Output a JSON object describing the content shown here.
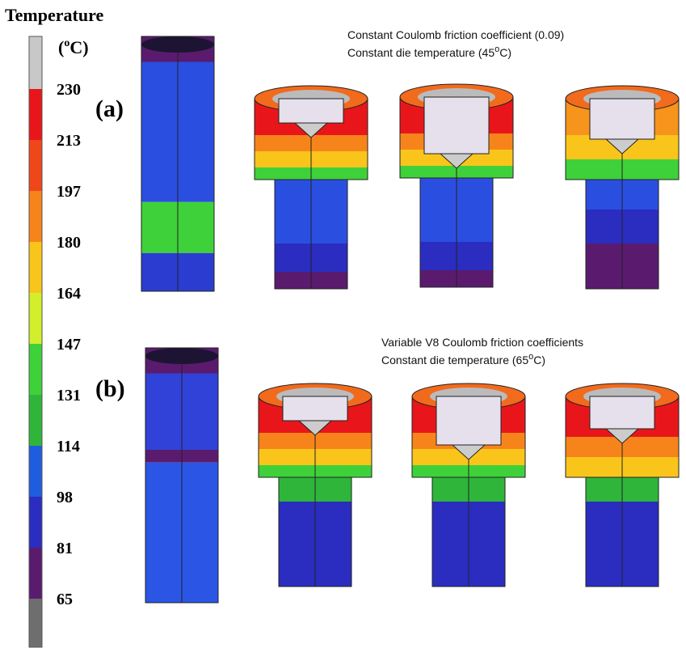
{
  "legend": {
    "title": "Temperature",
    "unit": [
      "(",
      "o",
      "C)"
    ],
    "labels": [
      "230",
      "213",
      "197",
      "180",
      "164",
      "147",
      "131",
      "114",
      "98",
      "81",
      "65"
    ]
  },
  "panels": [
    {
      "label": "(a)",
      "caption": [
        "Constant Coulomb friction coefficient (0.09)",
        [
          "Constant die temperature (45",
          "o",
          "C)"
        ]
      ]
    },
    {
      "label": "(b)",
      "caption": [
        "Variable V8 Coulomb friction coefficients",
        [
          "Constant die temperature (65",
          "o",
          "C)"
        ]
      ]
    }
  ]
}
